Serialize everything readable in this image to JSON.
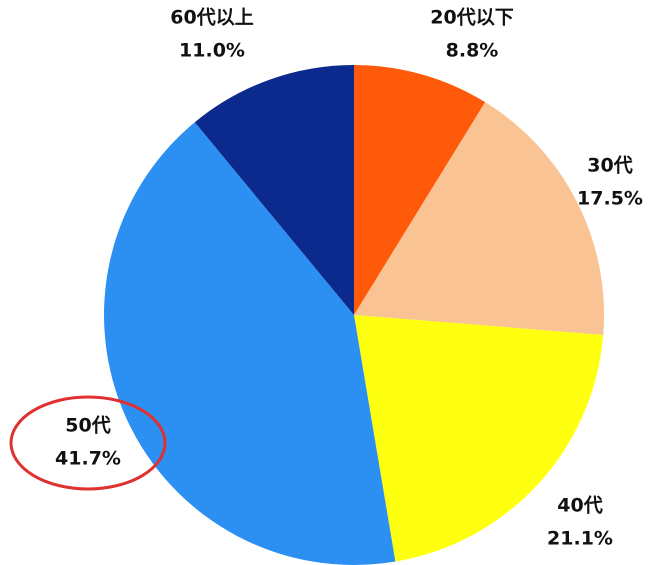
{
  "chart_data": {
    "type": "pie",
    "categories": [
      "20代以下",
      "30代",
      "40代",
      "50代",
      "60代以上"
    ],
    "values": [
      8.8,
      17.5,
      21.1,
      41.7,
      11.0
    ],
    "value_labels": [
      "8.8%",
      "17.5%",
      "21.1%",
      "41.7%",
      "11.0%"
    ],
    "colors": [
      "#ff5a0a",
      "#f9c393",
      "#ffff10",
      "#2b90f2",
      "#0c2a8e"
    ]
  }
}
